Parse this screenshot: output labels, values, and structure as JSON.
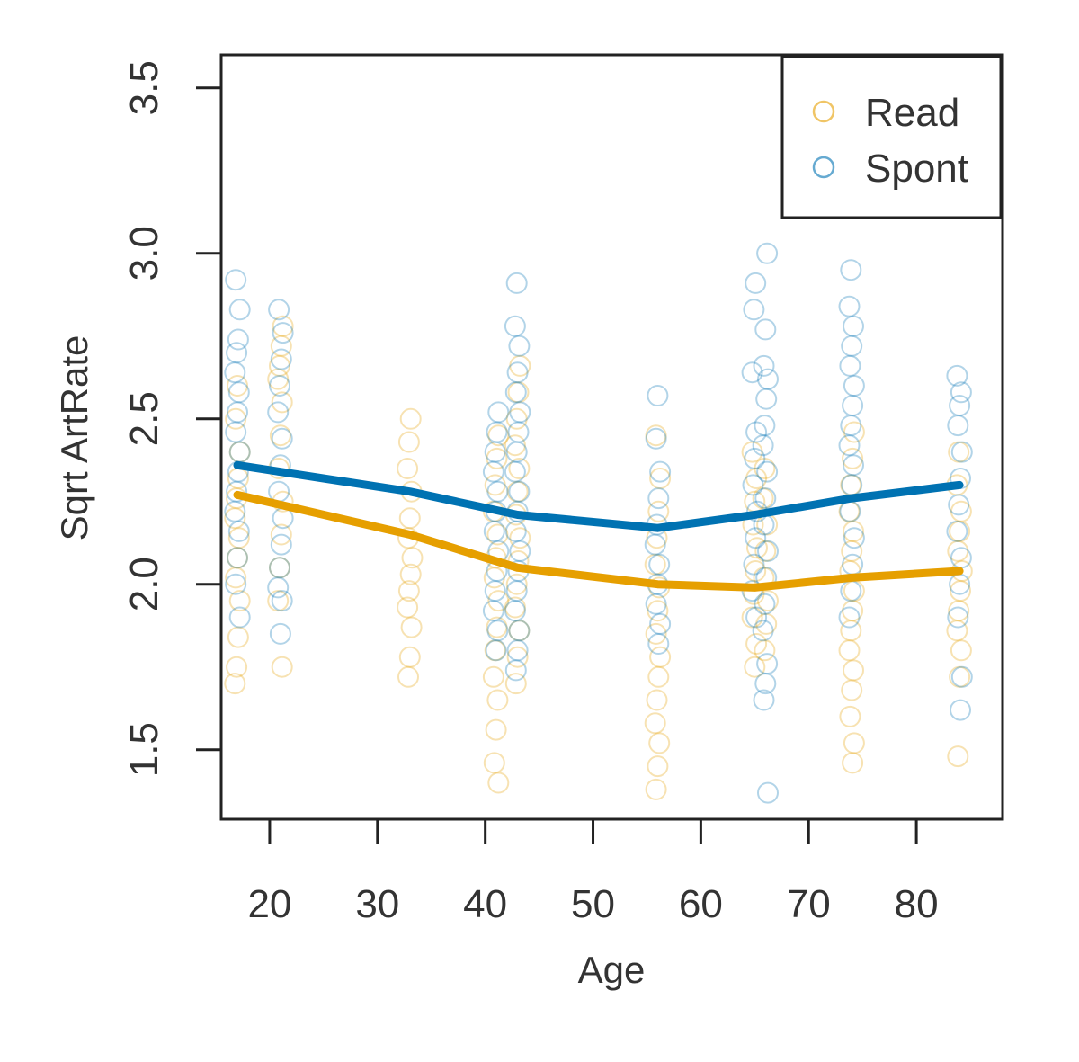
{
  "chart_data": {
    "type": "scatter",
    "title": "",
    "xlabel": "Age",
    "ylabel": "Sqrt ArtRate",
    "xlim": [
      15.5,
      88
    ],
    "ylim": [
      1.29,
      3.6
    ],
    "x_ticks": [
      20,
      30,
      40,
      50,
      60,
      70,
      80
    ],
    "y_ticks": [
      1.5,
      2.0,
      2.5,
      3.0,
      3.5
    ],
    "x_tick_labels": [
      "20",
      "30",
      "40",
      "50",
      "60",
      "70",
      "80"
    ],
    "y_tick_labels": [
      "1.5",
      "2.0",
      "2.5",
      "3.0",
      "3.5"
    ],
    "grid": false,
    "legend_position": "top-right",
    "colors": {
      "Read": "#E69F00",
      "Spont": "#0072B2"
    },
    "series": [
      {
        "name": "Read",
        "color": "#E69F00",
        "points": [
          [
            17,
            1.7
          ],
          [
            17,
            1.75
          ],
          [
            17,
            1.84
          ],
          [
            17,
            1.95
          ],
          [
            17,
            2.02
          ],
          [
            17,
            2.08
          ],
          [
            17,
            2.14
          ],
          [
            17,
            2.2
          ],
          [
            17,
            2.26
          ],
          [
            17,
            2.32
          ],
          [
            17,
            2.4
          ],
          [
            17,
            2.5
          ],
          [
            17,
            2.6
          ],
          [
            21,
            1.75
          ],
          [
            21,
            1.95
          ],
          [
            21,
            2.05
          ],
          [
            21,
            2.15
          ],
          [
            21,
            2.25
          ],
          [
            21,
            2.35
          ],
          [
            21,
            2.45
          ],
          [
            21,
            2.55
          ],
          [
            21,
            2.62
          ],
          [
            21,
            2.66
          ],
          [
            21,
            2.72
          ],
          [
            21,
            2.78
          ],
          [
            33,
            1.72
          ],
          [
            33,
            1.78
          ],
          [
            33,
            1.87
          ],
          [
            33,
            1.93
          ],
          [
            33,
            1.98
          ],
          [
            33,
            2.03
          ],
          [
            33,
            2.08
          ],
          [
            33,
            2.14
          ],
          [
            33,
            2.2
          ],
          [
            33,
            2.28
          ],
          [
            33,
            2.35
          ],
          [
            33,
            2.43
          ],
          [
            33,
            2.5
          ],
          [
            41,
            1.4
          ],
          [
            41,
            1.46
          ],
          [
            41,
            1.56
          ],
          [
            41,
            1.65
          ],
          [
            41,
            1.72
          ],
          [
            41,
            1.8
          ],
          [
            41,
            1.87
          ],
          [
            41,
            1.95
          ],
          [
            41,
            2.02
          ],
          [
            41,
            2.08
          ],
          [
            41,
            2.15
          ],
          [
            41,
            2.22
          ],
          [
            41,
            2.3
          ],
          [
            41,
            2.38
          ],
          [
            41,
            2.45
          ],
          [
            43,
            1.7
          ],
          [
            43,
            1.78
          ],
          [
            43,
            1.86
          ],
          [
            43,
            1.93
          ],
          [
            43,
            2.0
          ],
          [
            43,
            2.07
          ],
          [
            43,
            2.14
          ],
          [
            43,
            2.21
          ],
          [
            43,
            2.28
          ],
          [
            43,
            2.35
          ],
          [
            43,
            2.42
          ],
          [
            43,
            2.5
          ],
          [
            43,
            2.58
          ],
          [
            43,
            2.66
          ],
          [
            56,
            1.38
          ],
          [
            56,
            1.45
          ],
          [
            56,
            1.52
          ],
          [
            56,
            1.58
          ],
          [
            56,
            1.65
          ],
          [
            56,
            1.72
          ],
          [
            56,
            1.78
          ],
          [
            56,
            1.85
          ],
          [
            56,
            1.92
          ],
          [
            56,
            1.99
          ],
          [
            56,
            2.06
          ],
          [
            56,
            2.14
          ],
          [
            56,
            2.22
          ],
          [
            56,
            2.32
          ],
          [
            56,
            2.45
          ],
          [
            65,
            1.75
          ],
          [
            65,
            1.82
          ],
          [
            65,
            1.9
          ],
          [
            65,
            1.97
          ],
          [
            65,
            2.04
          ],
          [
            65,
            2.11
          ],
          [
            65,
            2.18
          ],
          [
            65,
            2.25
          ],
          [
            65,
            2.32
          ],
          [
            65,
            2.4
          ],
          [
            66,
            1.8
          ],
          [
            66,
            1.88
          ],
          [
            66,
            1.95
          ],
          [
            66,
            2.02
          ],
          [
            66,
            2.1
          ],
          [
            66,
            2.18
          ],
          [
            66,
            2.26
          ],
          [
            66,
            2.35
          ],
          [
            74,
            1.46
          ],
          [
            74,
            1.52
          ],
          [
            74,
            1.6
          ],
          [
            74,
            1.68
          ],
          [
            74,
            1.74
          ],
          [
            74,
            1.8
          ],
          [
            74,
            1.86
          ],
          [
            74,
            1.92
          ],
          [
            74,
            1.98
          ],
          [
            74,
            2.04
          ],
          [
            74,
            2.1
          ],
          [
            74,
            2.16
          ],
          [
            74,
            2.22
          ],
          [
            74,
            2.3
          ],
          [
            74,
            2.38
          ],
          [
            74,
            2.46
          ],
          [
            84,
            1.48
          ],
          [
            84,
            1.72
          ],
          [
            84,
            1.8
          ],
          [
            84,
            1.86
          ],
          [
            84,
            1.92
          ],
          [
            84,
            1.98
          ],
          [
            84,
            2.04
          ],
          [
            84,
            2.1
          ],
          [
            84,
            2.16
          ],
          [
            84,
            2.22
          ],
          [
            84,
            2.3
          ],
          [
            84,
            2.4
          ]
        ],
        "trend": [
          [
            17,
            2.27
          ],
          [
            33,
            2.15
          ],
          [
            43,
            2.05
          ],
          [
            56,
            2.0
          ],
          [
            65,
            1.99
          ],
          [
            74,
            2.02
          ],
          [
            84,
            2.04
          ]
        ]
      },
      {
        "name": "Spont",
        "color": "#0072B2",
        "points": [
          [
            17,
            1.9
          ],
          [
            17,
            2.0
          ],
          [
            17,
            2.08
          ],
          [
            17,
            2.16
          ],
          [
            17,
            2.22
          ],
          [
            17,
            2.28
          ],
          [
            17,
            2.34
          ],
          [
            17,
            2.4
          ],
          [
            17,
            2.46
          ],
          [
            17,
            2.52
          ],
          [
            17,
            2.58
          ],
          [
            17,
            2.64
          ],
          [
            17,
            2.7
          ],
          [
            17,
            2.74
          ],
          [
            17,
            2.83
          ],
          [
            17,
            2.92
          ],
          [
            21,
            1.85
          ],
          [
            21,
            1.95
          ],
          [
            21,
            1.99
          ],
          [
            21,
            2.05
          ],
          [
            21,
            2.12
          ],
          [
            21,
            2.2
          ],
          [
            21,
            2.28
          ],
          [
            21,
            2.36
          ],
          [
            21,
            2.44
          ],
          [
            21,
            2.52
          ],
          [
            21,
            2.6
          ],
          [
            21,
            2.68
          ],
          [
            21,
            2.76
          ],
          [
            21,
            2.83
          ],
          [
            41,
            1.8
          ],
          [
            41,
            1.86
          ],
          [
            41,
            1.92
          ],
          [
            41,
            1.98
          ],
          [
            41,
            2.04
          ],
          [
            41,
            2.1
          ],
          [
            41,
            2.16
          ],
          [
            41,
            2.22
          ],
          [
            41,
            2.28
          ],
          [
            41,
            2.34
          ],
          [
            41,
            2.4
          ],
          [
            41,
            2.46
          ],
          [
            41,
            2.52
          ],
          [
            43,
            1.74
          ],
          [
            43,
            1.8
          ],
          [
            43,
            1.86
          ],
          [
            43,
            1.92
          ],
          [
            43,
            1.98
          ],
          [
            43,
            2.04
          ],
          [
            43,
            2.1
          ],
          [
            43,
            2.16
          ],
          [
            43,
            2.22
          ],
          [
            43,
            2.28
          ],
          [
            43,
            2.34
          ],
          [
            43,
            2.4
          ],
          [
            43,
            2.46
          ],
          [
            43,
            2.52
          ],
          [
            43,
            2.58
          ],
          [
            43,
            2.64
          ],
          [
            43,
            2.72
          ],
          [
            43,
            2.78
          ],
          [
            43,
            2.91
          ],
          [
            56,
            1.82
          ],
          [
            56,
            1.88
          ],
          [
            56,
            1.94
          ],
          [
            56,
            2.0
          ],
          [
            56,
            2.06
          ],
          [
            56,
            2.12
          ],
          [
            56,
            2.18
          ],
          [
            56,
            2.26
          ],
          [
            56,
            2.34
          ],
          [
            56,
            2.44
          ],
          [
            56,
            2.57
          ],
          [
            65,
            1.9
          ],
          [
            65,
            1.98
          ],
          [
            65,
            2.06
          ],
          [
            65,
            2.14
          ],
          [
            65,
            2.22
          ],
          [
            65,
            2.3
          ],
          [
            65,
            2.38
          ],
          [
            65,
            2.46
          ],
          [
            65,
            2.64
          ],
          [
            65,
            2.83
          ],
          [
            65,
            2.91
          ],
          [
            66,
            1.37
          ],
          [
            66,
            1.65
          ],
          [
            66,
            1.7
          ],
          [
            66,
            1.76
          ],
          [
            66,
            1.86
          ],
          [
            66,
            1.94
          ],
          [
            66,
            2.02
          ],
          [
            66,
            2.1
          ],
          [
            66,
            2.18
          ],
          [
            66,
            2.26
          ],
          [
            66,
            2.34
          ],
          [
            66,
            2.42
          ],
          [
            66,
            2.48
          ],
          [
            66,
            2.56
          ],
          [
            66,
            2.62
          ],
          [
            66,
            2.66
          ],
          [
            66,
            2.77
          ],
          [
            66,
            3.0
          ],
          [
            74,
            1.9
          ],
          [
            74,
            1.98
          ],
          [
            74,
            2.06
          ],
          [
            74,
            2.14
          ],
          [
            74,
            2.22
          ],
          [
            74,
            2.3
          ],
          [
            74,
            2.36
          ],
          [
            74,
            2.42
          ],
          [
            74,
            2.48
          ],
          [
            74,
            2.54
          ],
          [
            74,
            2.6
          ],
          [
            74,
            2.66
          ],
          [
            74,
            2.72
          ],
          [
            74,
            2.78
          ],
          [
            74,
            2.84
          ],
          [
            74,
            2.95
          ],
          [
            84,
            1.62
          ],
          [
            84,
            1.72
          ],
          [
            84,
            1.9
          ],
          [
            84,
            2.0
          ],
          [
            84,
            2.08
          ],
          [
            84,
            2.16
          ],
          [
            84,
            2.24
          ],
          [
            84,
            2.32
          ],
          [
            84,
            2.4
          ],
          [
            84,
            2.48
          ],
          [
            84,
            2.54
          ],
          [
            84,
            2.58
          ],
          [
            84,
            2.63
          ]
        ],
        "trend": [
          [
            17,
            2.36
          ],
          [
            33,
            2.28
          ],
          [
            43,
            2.21
          ],
          [
            56,
            2.17
          ],
          [
            65,
            2.21
          ],
          [
            74,
            2.26
          ],
          [
            84,
            2.3
          ]
        ]
      }
    ]
  }
}
